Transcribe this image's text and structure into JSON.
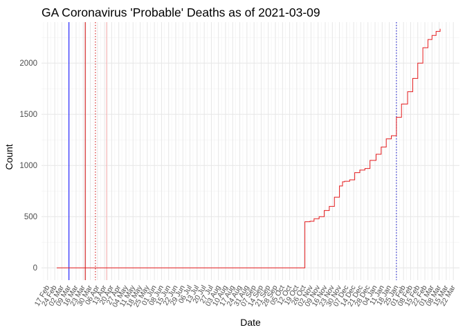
{
  "chart_data": {
    "type": "line",
    "title": "GA Coronavirus 'Probable' Deaths as of 2021-03-09",
    "xlabel": "Date",
    "ylabel": "Count",
    "ylim": [
      -120,
      2400
    ],
    "yticks": [
      0,
      500,
      1000,
      1500,
      2000
    ],
    "xlim": [
      "2020-02-11",
      "2021-03-28"
    ],
    "x_tick_labels": [
      {
        "date": "2020-02-17",
        "label": "17 Feb"
      },
      {
        "date": "2020-02-24",
        "label": "24 Feb"
      },
      {
        "date": "2020-03-02",
        "label": "02 Mar"
      },
      {
        "date": "2020-03-09",
        "label": "09 Mar"
      },
      {
        "date": "2020-03-16",
        "label": "16 Mar"
      },
      {
        "date": "2020-03-23",
        "label": "23 Mar"
      },
      {
        "date": "2020-03-30",
        "label": "30 Mar"
      },
      {
        "date": "2020-04-06",
        "label": "06 Apr"
      },
      {
        "date": "2020-04-13",
        "label": "13 Apr"
      },
      {
        "date": "2020-04-20",
        "label": "20 Apr"
      },
      {
        "date": "2020-04-27",
        "label": "27 Apr"
      },
      {
        "date": "2020-05-04",
        "label": "04 May"
      },
      {
        "date": "2020-05-11",
        "label": "11 May"
      },
      {
        "date": "2020-05-18",
        "label": "18 May"
      },
      {
        "date": "2020-05-25",
        "label": "25 May"
      },
      {
        "date": "2020-06-01",
        "label": "01 Jun"
      },
      {
        "date": "2020-06-08",
        "label": "08 Jun"
      },
      {
        "date": "2020-06-15",
        "label": "15 Jun"
      },
      {
        "date": "2020-06-22",
        "label": "22 Jun"
      },
      {
        "date": "2020-06-29",
        "label": "29 Jun"
      },
      {
        "date": "2020-07-06",
        "label": "06 Jul"
      },
      {
        "date": "2020-07-13",
        "label": "13 Jul"
      },
      {
        "date": "2020-07-20",
        "label": "20 Jul"
      },
      {
        "date": "2020-07-27",
        "label": "27 Jul"
      },
      {
        "date": "2020-08-03",
        "label": "03 Aug"
      },
      {
        "date": "2020-08-10",
        "label": "10 Aug"
      },
      {
        "date": "2020-08-17",
        "label": "17 Aug"
      },
      {
        "date": "2020-08-24",
        "label": "24 Aug"
      },
      {
        "date": "2020-08-31",
        "label": "31 Aug"
      },
      {
        "date": "2020-09-07",
        "label": "07 Sep"
      },
      {
        "date": "2020-09-14",
        "label": "14 Sep"
      },
      {
        "date": "2020-09-21",
        "label": "21 Sep"
      },
      {
        "date": "2020-09-28",
        "label": "28 Sep"
      },
      {
        "date": "2020-10-05",
        "label": "05 Oct"
      },
      {
        "date": "2020-10-12",
        "label": "12 Oct"
      },
      {
        "date": "2020-10-19",
        "label": "19 Oct"
      },
      {
        "date": "2020-10-26",
        "label": "26 Oct"
      },
      {
        "date": "2020-11-02",
        "label": "02 Nov"
      },
      {
        "date": "2020-11-09",
        "label": "09 Nov"
      },
      {
        "date": "2020-11-16",
        "label": "16 Nov"
      },
      {
        "date": "2020-11-23",
        "label": "23 Nov"
      },
      {
        "date": "2020-11-30",
        "label": "30 Nov"
      },
      {
        "date": "2020-12-07",
        "label": "07 Dec"
      },
      {
        "date": "2020-12-14",
        "label": "14 Dec"
      },
      {
        "date": "2020-12-21",
        "label": "21 Dec"
      },
      {
        "date": "2020-12-28",
        "label": "28 Dec"
      },
      {
        "date": "2021-01-04",
        "label": "04 Jan"
      },
      {
        "date": "2021-01-11",
        "label": "11 Jan"
      },
      {
        "date": "2021-01-18",
        "label": "18 Jan"
      },
      {
        "date": "2021-01-25",
        "label": "25 Jan"
      },
      {
        "date": "2021-02-01",
        "label": "01 Feb"
      },
      {
        "date": "2021-02-08",
        "label": "08 Feb"
      },
      {
        "date": "2021-02-15",
        "label": "15 Feb"
      },
      {
        "date": "2021-02-22",
        "label": "22 Feb"
      },
      {
        "date": "2021-03-01",
        "label": "01 Mar"
      },
      {
        "date": "2021-03-08",
        "label": "08 Mar"
      },
      {
        "date": "2021-03-15",
        "label": "15 Mar"
      },
      {
        "date": "2021-03-22",
        "label": "22 Mar"
      }
    ],
    "series": [
      {
        "color": "#e41a1c",
        "x": [
          "2020-02-26",
          "2020-10-26",
          "2020-10-27",
          "2020-11-01",
          "2020-11-05",
          "2020-11-10",
          "2020-11-15",
          "2020-11-20",
          "2020-11-25",
          "2020-11-30",
          "2020-12-03",
          "2020-12-05",
          "2020-12-10",
          "2020-12-15",
          "2020-12-20",
          "2020-12-25",
          "2020-12-30",
          "2021-01-05",
          "2021-01-10",
          "2021-01-15",
          "2021-01-20",
          "2021-01-25",
          "2021-01-30",
          "2021-02-05",
          "2021-02-10",
          "2021-02-15",
          "2021-02-20",
          "2021-02-25",
          "2021-03-01",
          "2021-03-05",
          "2021-03-09"
        ],
        "values": [
          0,
          0,
          450,
          455,
          480,
          500,
          560,
          600,
          690,
          800,
          840,
          845,
          860,
          930,
          955,
          970,
          1050,
          1110,
          1180,
          1260,
          1290,
          1470,
          1600,
          1720,
          1850,
          2000,
          2150,
          2230,
          2270,
          2310,
          2335
        ]
      }
    ],
    "reference_lines": [
      {
        "date": "2020-03-09",
        "color": "#0000ff",
        "style": "solid"
      },
      {
        "date": "2020-03-25",
        "color": "#cc0000",
        "style": "solid"
      },
      {
        "date": "2020-04-04",
        "color": "#cc0000",
        "style": "dotted"
      },
      {
        "date": "2020-04-15",
        "color": "#f4a6a6",
        "style": "solid"
      },
      {
        "date": "2021-01-25",
        "color": "#0000cc",
        "style": "dotted"
      }
    ],
    "grid": true,
    "legend": "none"
  }
}
